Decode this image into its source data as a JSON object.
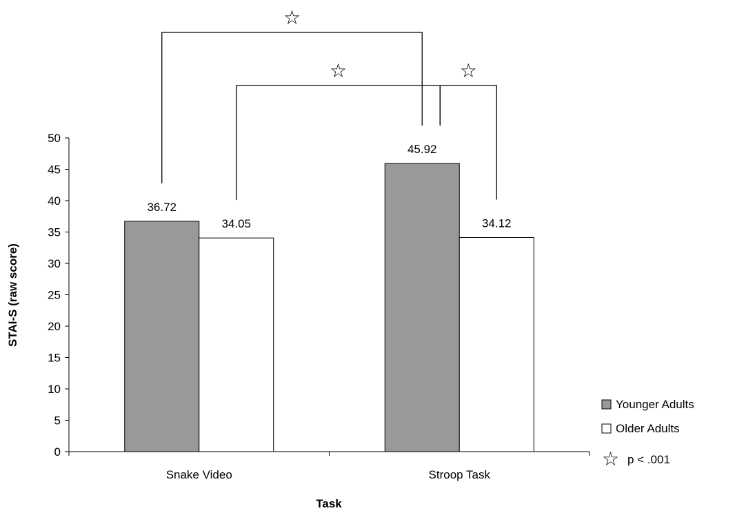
{
  "chart_data": {
    "type": "bar",
    "title": "",
    "xlabel": "Task",
    "ylabel": "STAI-S (raw score)",
    "categories": [
      "Snake Video",
      "Stroop Task"
    ],
    "series": [
      {
        "name": "Younger Adults",
        "values": [
          36.72,
          45.92
        ],
        "color": "#999999"
      },
      {
        "name": "Older Adults",
        "values": [
          34.05,
          34.12
        ],
        "color": "#ffffff"
      }
    ],
    "data_labels": [
      "36.72",
      "34.05",
      "45.92",
      "34.12"
    ],
    "ylim": [
      0,
      50
    ],
    "yticks": [
      0,
      5,
      10,
      15,
      20,
      25,
      30,
      35,
      40,
      45,
      50
    ],
    "grid": false,
    "legend_position": "right",
    "significance": {
      "symbol": "☆",
      "legend_label": "p < .001",
      "comparisons": [
        {
          "from": "Snake Video / Younger Adults",
          "to": "Stroop Task / Younger Adults"
        },
        {
          "from": "Snake Video / Older Adults",
          "to": "Stroop Task / Younger Adults"
        },
        {
          "from": "Stroop Task / Younger Adults",
          "to": "Stroop Task / Older Adults"
        }
      ]
    }
  }
}
